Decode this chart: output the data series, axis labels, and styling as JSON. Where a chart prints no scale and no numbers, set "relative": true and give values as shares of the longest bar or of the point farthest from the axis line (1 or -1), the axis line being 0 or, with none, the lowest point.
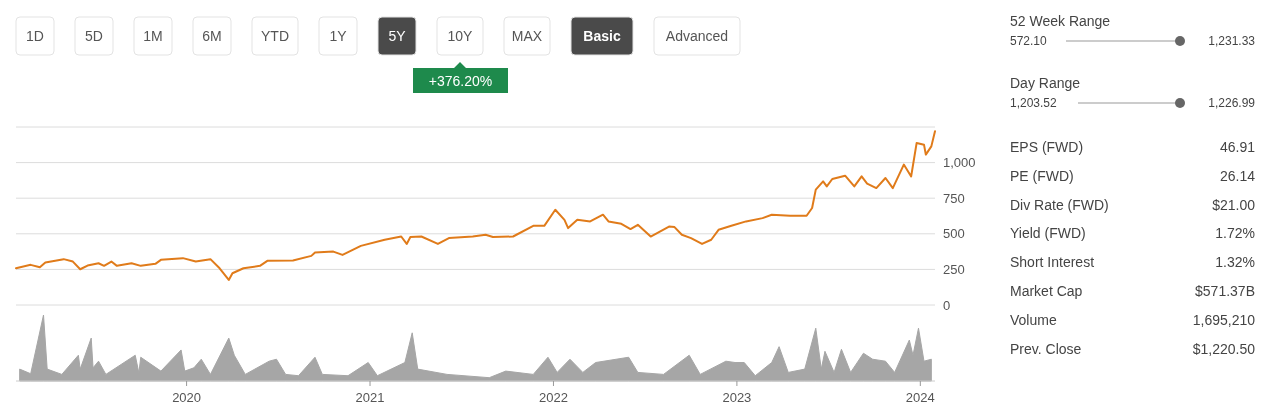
{
  "chart_data": [
    {
      "type": "other",
      "annotations": [
        "1D",
        "5D",
        "1M",
        "6M",
        "YTD",
        "1Y",
        "5Y",
        "10Y",
        "MAX",
        "Basic",
        "Advanced"
      ]
    },
    {
      "type": "line",
      "annotations": [
        "+376.20%"
      ],
      "color": "#e07b1a",
      "grid": "y",
      "tick_labels": "y",
      "xlim": [
        2019.07,
        2024.08
      ],
      "ylim": [
        0,
        1250
      ],
      "yticks": [
        0,
        250,
        500,
        750,
        {
          "value": 1000,
          "label": "1,000"
        },
        {
          "value": 1250,
          "label": null
        }
      ],
      "x": [
        2019.07,
        2019.15,
        2019.2,
        2019.23,
        2019.33,
        2019.38,
        2019.42,
        2019.46,
        2019.52,
        2019.55,
        2019.59,
        2019.62,
        2019.7,
        2019.75,
        2019.83,
        2019.86,
        2019.98,
        2020.05,
        2020.13,
        2020.18,
        2020.23,
        2020.25,
        2020.31,
        2020.4,
        2020.44,
        2020.58,
        2020.68,
        2020.7,
        2020.8,
        2020.85,
        2020.95,
        2021.08,
        2021.17,
        2021.2,
        2021.22,
        2021.28,
        2021.37,
        2021.43,
        2021.56,
        2021.63,
        2021.67,
        2021.78,
        2021.89,
        2021.95,
        2022.01,
        2022.06,
        2022.08,
        2022.13,
        2022.2,
        2022.27,
        2022.3,
        2022.37,
        2022.42,
        2022.46,
        2022.53,
        2022.63,
        2022.66,
        2022.7,
        2022.75,
        2022.81,
        2022.86,
        2022.9,
        2022.97,
        2023.05,
        2023.14,
        2023.19,
        2023.29,
        2023.38,
        2023.41,
        2023.43,
        2023.47,
        2023.49,
        2023.52,
        2023.59,
        2023.64,
        2023.68,
        2023.71,
        2023.76,
        2023.81,
        2023.85,
        2023.91,
        2023.95,
        2023.98,
        2024.02,
        2024.03,
        2024.06,
        2024.08
      ],
      "values": [
        258,
        282,
        265,
        298,
        322,
        305,
        251,
        277,
        293,
        275,
        305,
        275,
        293,
        275,
        289,
        317,
        329,
        305,
        322,
        258,
        176,
        223,
        258,
        275,
        310,
        312,
        345,
        368,
        375,
        352,
        415,
        458,
        481,
        429,
        477,
        481,
        429,
        470,
        481,
        493,
        477,
        481,
        556,
        556,
        669,
        598,
        540,
        598,
        587,
        634,
        587,
        570,
        533,
        563,
        481,
        551,
        547,
        493,
        470,
        429,
        458,
        528,
        556,
        587,
        610,
        634,
        627,
        627,
        681,
        810,
        868,
        833,
        885,
        908,
        833,
        903,
        852,
        821,
        892,
        821,
        986,
        903,
        1138,
        1126,
        1056,
        1114,
        1220
      ]
    },
    {
      "type": "area",
      "relative": true,
      "color": "#a6a6a6",
      "tick_labels": "x",
      "xlim": [
        2019.07,
        2024.08
      ],
      "xticks": [
        2020,
        2021,
        2022,
        2023,
        2024
      ],
      "x": [
        2019.09,
        2019.15,
        2019.22,
        2019.24,
        2019.32,
        2019.41,
        2019.42,
        2019.48,
        2019.49,
        2019.52,
        2019.56,
        2019.72,
        2019.74,
        2019.75,
        2019.86,
        2019.97,
        2019.99,
        2020.04,
        2020.08,
        2020.13,
        2020.23,
        2020.26,
        2020.32,
        2020.45,
        2020.49,
        2020.54,
        2020.61,
        2020.7,
        2020.74,
        2020.88,
        2020.99,
        2021.04,
        2021.19,
        2021.23,
        2021.26,
        2021.42,
        2021.65,
        2021.74,
        2021.89,
        2021.97,
        2022.02,
        2022.09,
        2022.16,
        2022.23,
        2022.41,
        2022.46,
        2022.6,
        2022.74,
        2022.8,
        2022.94,
        2022.99,
        2023.04,
        2023.1,
        2023.19,
        2023.23,
        2023.28,
        2023.37,
        2023.43,
        2023.46,
        2023.48,
        2023.53,
        2023.57,
        2023.62,
        2023.69,
        2023.74,
        2023.81,
        2023.86,
        2023.94,
        2023.96,
        2023.99,
        2024.02,
        2024.06
      ],
      "values": [
        0.18,
        0.11,
        1.0,
        0.18,
        0.1,
        0.39,
        0.18,
        0.65,
        0.2,
        0.3,
        0.1,
        0.39,
        0.12,
        0.36,
        0.15,
        0.47,
        0.15,
        0.2,
        0.33,
        0.1,
        0.65,
        0.39,
        0.1,
        0.3,
        0.33,
        0.1,
        0.08,
        0.36,
        0.1,
        0.08,
        0.28,
        0.08,
        0.28,
        0.73,
        0.18,
        0.1,
        0.05,
        0.15,
        0.1,
        0.36,
        0.13,
        0.33,
        0.13,
        0.28,
        0.36,
        0.13,
        0.1,
        0.39,
        0.1,
        0.3,
        0.28,
        0.28,
        0.08,
        0.28,
        0.52,
        0.13,
        0.18,
        0.8,
        0.18,
        0.45,
        0.13,
        0.48,
        0.13,
        0.42,
        0.33,
        0.3,
        0.13,
        0.62,
        0.39,
        0.8,
        0.3,
        0.33
      ]
    },
    {
      "type": "other",
      "annotations": [
        "52 Week Range",
        "572.10",
        "1,231.33",
        "Day Range",
        "1,203.52",
        "1,226.99",
        "EPS (FWD)",
        "46.91",
        "PE (FWD)",
        "26.14",
        "Div Rate (FWD)",
        "$21.00",
        "Yield (FWD)",
        "1.72%",
        "Short Interest",
        "1.32%",
        "Market Cap",
        "$571.37B",
        "Volume",
        "1,695,210",
        "Prev. Close",
        "$1,220.50"
      ]
    }
  ]
}
